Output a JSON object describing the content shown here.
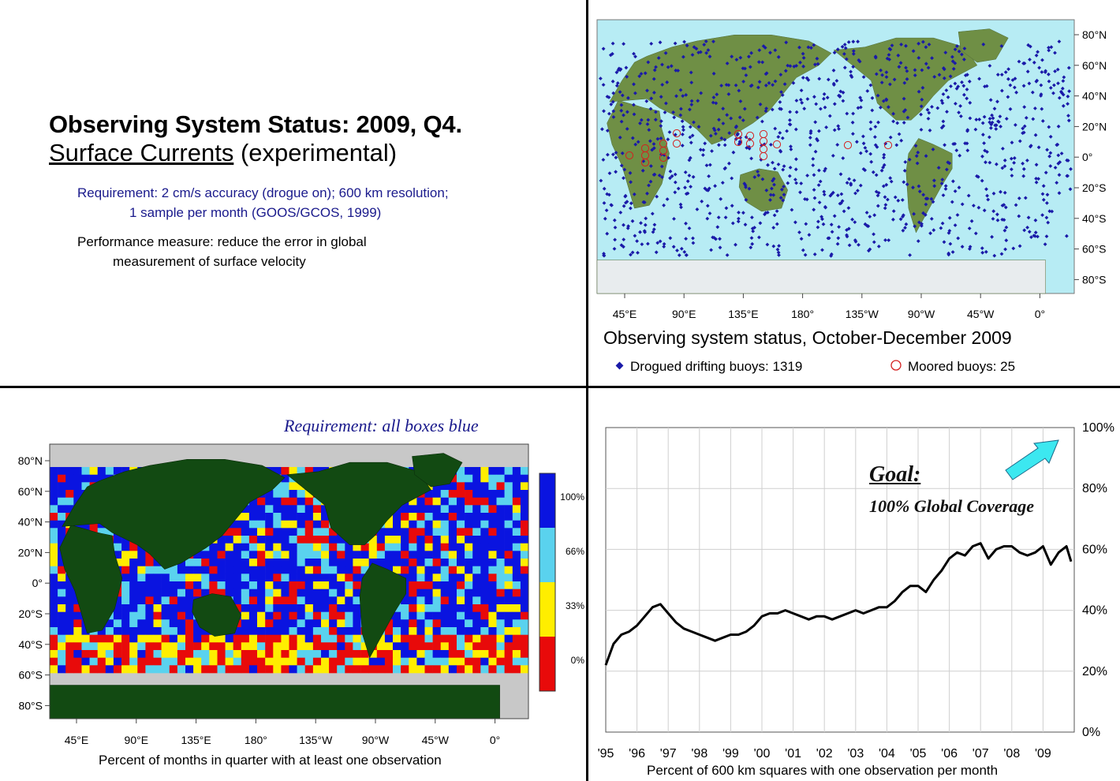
{
  "top_left": {
    "title_line1": "Observing System Status:  2009, Q4.",
    "title_line2_underlined": "Surface Currents",
    "title_line2_rest": " (experimental)",
    "requirement_line1": "Requirement: 2 cm/s accuracy (drogue on); 600 km resolution;",
    "requirement_line2": "1 sample per month (GOOS/GCOS, 1999)",
    "performance_line1": "Performance measure: reduce the error in global",
    "performance_line2": "measurement of surface velocity"
  },
  "buoy_map": {
    "lat_labels": [
      "80°N",
      "60°N",
      "40°N",
      "20°N",
      "0°",
      "20°S",
      "40°S",
      "60°S",
      "80°S"
    ],
    "lon_labels": [
      "45°E",
      "90°E",
      "135°E",
      "180°",
      "135°W",
      "90°W",
      "45°W",
      "0°"
    ],
    "caption": "Observing system status, October-December 2009",
    "legend_drifting": "Drogued drifting buoys: 1319",
    "legend_moored": "Moored buoys: 25",
    "colors": {
      "drifting": "#1a1aa8",
      "moored": "#d42020",
      "ocean": "#b7ecf4",
      "land": "#6f8f45"
    }
  },
  "coverage_map": {
    "requirement": "Requirement: all boxes blue",
    "lat_labels": [
      "80°N",
      "60°N",
      "40°N",
      "20°N",
      "0°",
      "20°S",
      "40°S",
      "60°S",
      "80°S"
    ],
    "lon_labels": [
      "45°E",
      "90°E",
      "135°E",
      "180°",
      "135°W",
      "90°W",
      "45°W",
      "0°"
    ],
    "colorbar_labels": [
      "100%",
      "66%",
      "33%",
      "0%"
    ],
    "colorbar_colors": [
      "#0a14e0",
      "#5ad2ee",
      "#ffee00",
      "#e80a0a"
    ],
    "caption": "Percent of months in quarter with at least one observation",
    "colors": {
      "land": "#124a12",
      "no_data": "#c8c8c8"
    }
  },
  "chart_data": {
    "type": "line",
    "title": "",
    "xlabel": "Percent of 600 km squares with one observation per month",
    "ylabel": "",
    "x_tick_labels": [
      "'95",
      "'96",
      "'97",
      "'98",
      "'99",
      "'00",
      "'01",
      "'02",
      "'03",
      "'04",
      "'05",
      "'06",
      "'07",
      "'08",
      "'09"
    ],
    "y_tick_labels": [
      "0%",
      "20%",
      "40%",
      "60%",
      "80%",
      "100%"
    ],
    "xlim": [
      1995,
      2010
    ],
    "ylim": [
      0,
      100
    ],
    "grid": true,
    "annotations": {
      "goal_title": "Goal:",
      "goal_text": "100% Global Coverage"
    },
    "series": [
      {
        "x": [
          1995.0,
          1995.25,
          1995.5,
          1995.75,
          1996.0,
          1996.25,
          1996.5,
          1996.75,
          1997.0,
          1997.25,
          1997.5,
          1997.75,
          1998.0,
          1998.25,
          1998.5,
          1998.75,
          1999.0,
          1999.25,
          1999.5,
          1999.75,
          2000.0,
          2000.25,
          2000.5,
          2000.75,
          2001.0,
          2001.25,
          2001.5,
          2001.75,
          2002.0,
          2002.25,
          2002.5,
          2002.75,
          2003.0,
          2003.25,
          2003.5,
          2003.75,
          2004.0,
          2004.25,
          2004.5,
          2004.75,
          2005.0,
          2005.25,
          2005.5,
          2005.75,
          2006.0,
          2006.25,
          2006.5,
          2006.75,
          2007.0,
          2007.25,
          2007.5,
          2007.75,
          2008.0,
          2008.25,
          2008.5,
          2008.75,
          2009.0,
          2009.25,
          2009.5,
          2009.75,
          2009.9
        ],
        "values": [
          22,
          29,
          32,
          33,
          35,
          38,
          41,
          42,
          39,
          36,
          34,
          33,
          32,
          31,
          30,
          31,
          32,
          32,
          33,
          35,
          38,
          39,
          39,
          40,
          39,
          38,
          37,
          38,
          38,
          37,
          38,
          39,
          40,
          39,
          40,
          41,
          41,
          43,
          46,
          48,
          48,
          46,
          50,
          53,
          57,
          59,
          58,
          61,
          62,
          57,
          60,
          61,
          61,
          59,
          58,
          59,
          61,
          55,
          59,
          61,
          56
        ]
      }
    ]
  }
}
